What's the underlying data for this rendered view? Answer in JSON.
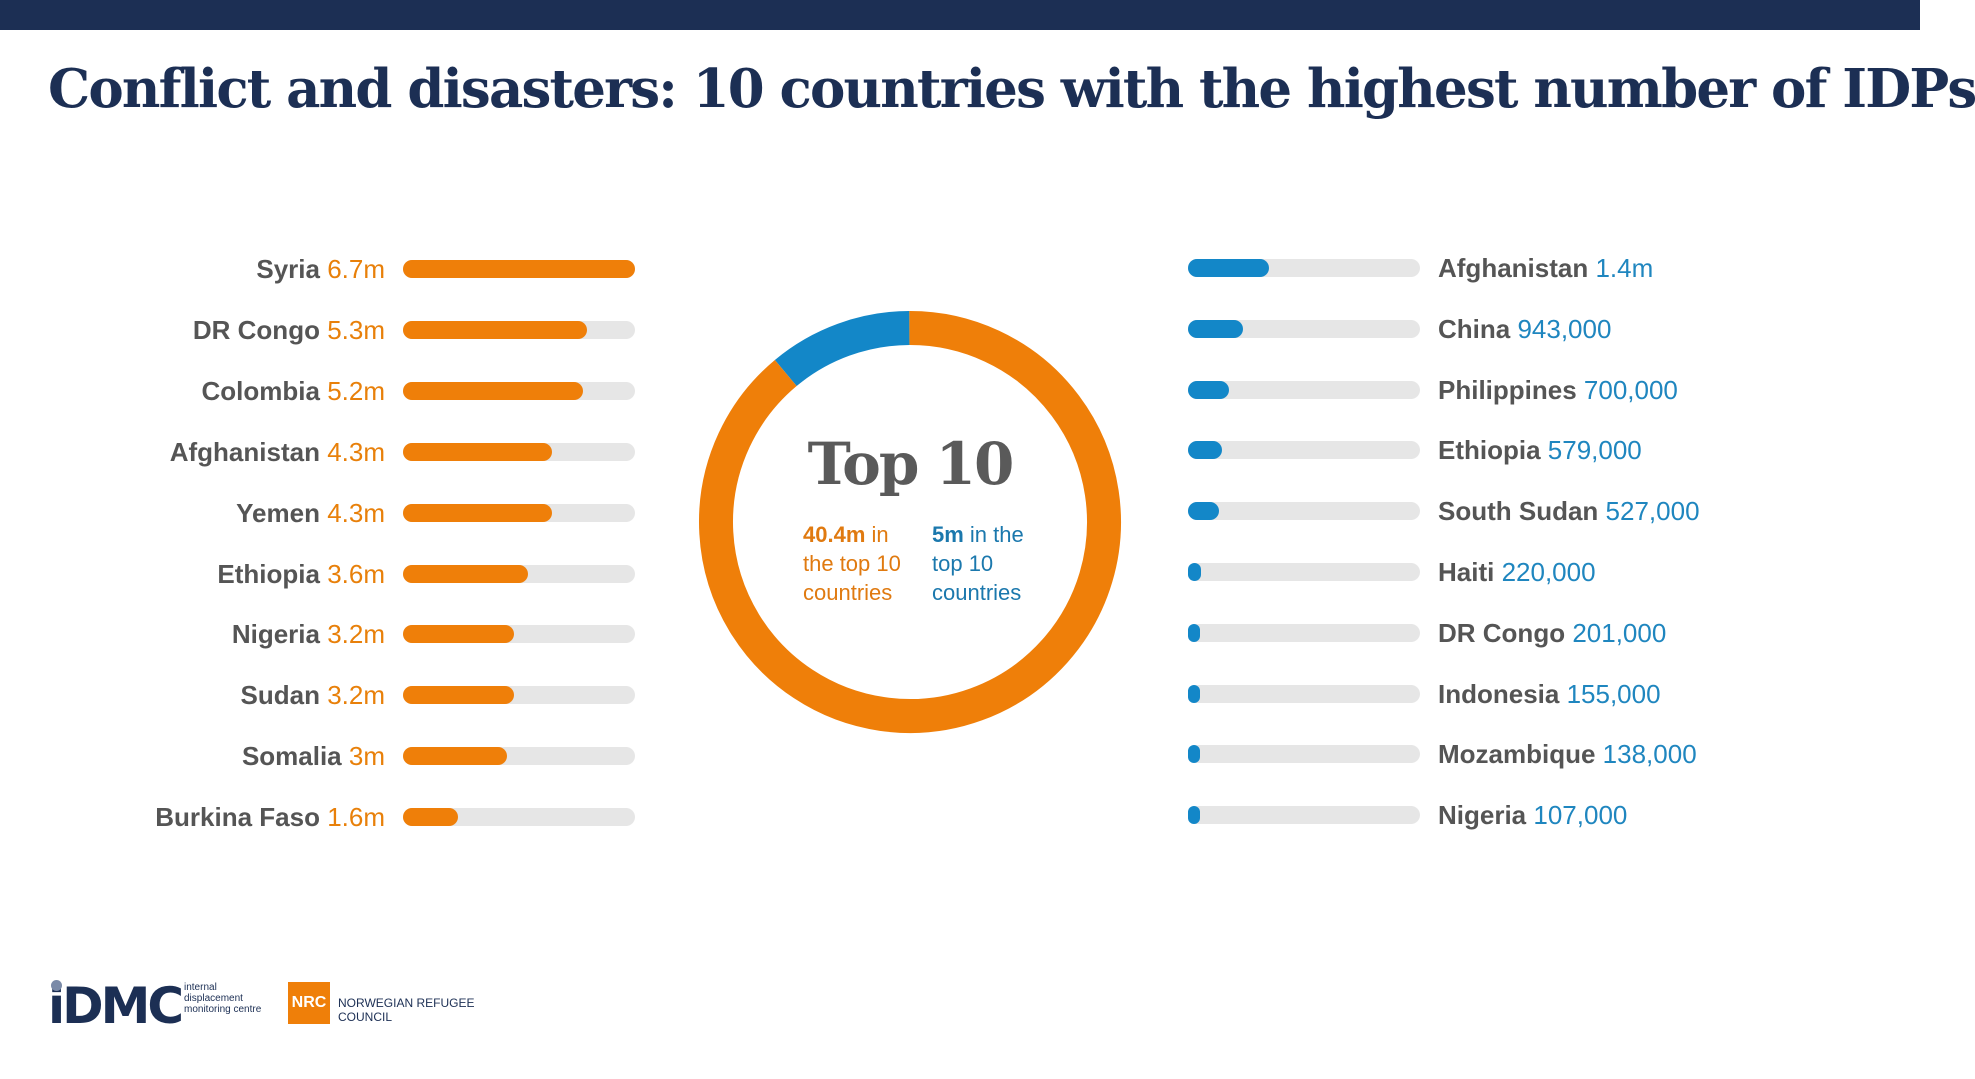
{
  "header": {
    "title": "Conflict and disasters: 10 countries with the highest number of IDPs"
  },
  "colors": {
    "navy": "#1c2f54",
    "conflict": "#ef7f09",
    "disaster": "#1387c8",
    "track": "#e6e6e6"
  },
  "chart_data": [
    {
      "type": "bar",
      "orientation": "horizontal",
      "series_color": "#ef7f09",
      "categories": [
        "Syria",
        "DR Congo",
        "Colombia",
        "Afghanistan",
        "Yemen",
        "Ethiopia",
        "Nigeria",
        "Sudan",
        "Somalia",
        "Burkina Faso"
      ],
      "labels": [
        "6.7m",
        "5.3m",
        "5.2m",
        "4.3m",
        "4.3m",
        "3.6m",
        "3.2m",
        "3.2m",
        "3m",
        "1.6m"
      ],
      "values": [
        6.7,
        5.3,
        5.2,
        4.3,
        4.3,
        3.6,
        3.2,
        3.2,
        3.0,
        1.6
      ],
      "xlim": [
        0,
        6.7
      ]
    },
    {
      "type": "bar",
      "orientation": "horizontal",
      "series_color": "#1387c8",
      "categories": [
        "Afghanistan",
        "China",
        "Philippines",
        "Ethiopia",
        "South Sudan",
        "Haiti",
        "DR Congo",
        "Indonesia",
        "Mozambique",
        "Nigeria"
      ],
      "labels": [
        "1.4m",
        "943,000",
        "700,000",
        "579,000",
        "527,000",
        "220,000",
        "201,000",
        "155,000",
        "138,000",
        "107,000"
      ],
      "values": [
        1.4,
        0.943,
        0.7,
        0.579,
        0.527,
        0.22,
        0.201,
        0.155,
        0.138,
        0.107
      ],
      "xlim": [
        0,
        4
      ]
    },
    {
      "type": "pie",
      "style": "donut",
      "title": "Top 10",
      "slices": [
        {
          "value": 40.4,
          "color": "#ef7f09",
          "value_label": "40.4m",
          "label_rest": " in the top 10 countries"
        },
        {
          "value": 5,
          "color": "#1387c8",
          "value_label": "5m",
          "label_rest": " in the top 10 countries"
        }
      ]
    }
  ],
  "logos": {
    "idmc": {
      "word": "iDMC",
      "tagline": "internal displacement monitoring centre"
    },
    "nrc": {
      "abbr": "NRC",
      "name": "NORWEGIAN REFUGEE COUNCIL"
    }
  }
}
